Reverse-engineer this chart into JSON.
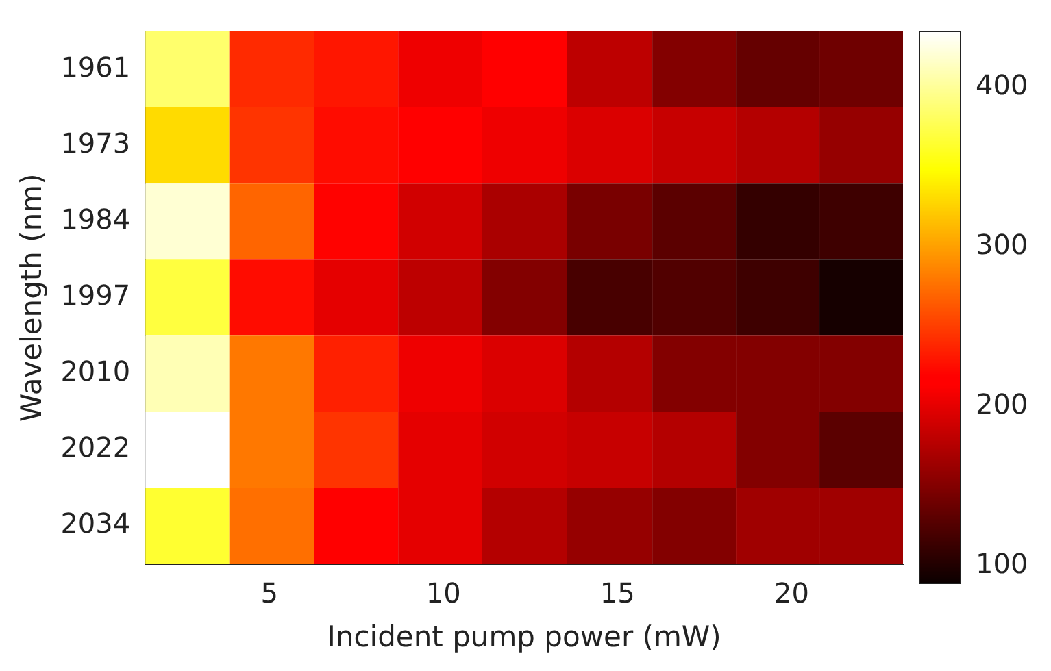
{
  "chart_data": {
    "type": "heatmap",
    "xlabel": "Incident pump power (mW)",
    "ylabel": "Wavelength (nm)",
    "x": [
      2.64,
      5.06,
      7.5,
      9.9,
      12.3,
      14.8,
      17.2,
      19.6,
      22.0
    ],
    "xlim": [
      1.44,
      23.2
    ],
    "xticks": [
      5,
      10,
      15,
      20
    ],
    "y_categories": [
      "1961",
      "1973",
      "1984",
      "1997",
      "2010",
      "2022",
      "2034"
    ],
    "cells": [
      [
        385,
        240,
        230,
        205,
        215,
        180,
        150,
        135,
        140
      ],
      [
        330,
        245,
        225,
        215,
        205,
        195,
        185,
        175,
        160
      ],
      [
        420,
        270,
        220,
        190,
        170,
        145,
        130,
        110,
        115
      ],
      [
        370,
        225,
        200,
        180,
        150,
        120,
        125,
        115,
        95
      ],
      [
        410,
        280,
        235,
        205,
        195,
        175,
        150,
        150,
        150
      ],
      [
        435,
        280,
        245,
        200,
        190,
        185,
        175,
        150,
        130
      ],
      [
        365,
        275,
        215,
        200,
        175,
        160,
        150,
        165,
        165
      ]
    ],
    "clim": [
      89,
      435
    ],
    "cticks": [
      100,
      200,
      300,
      400
    ]
  }
}
